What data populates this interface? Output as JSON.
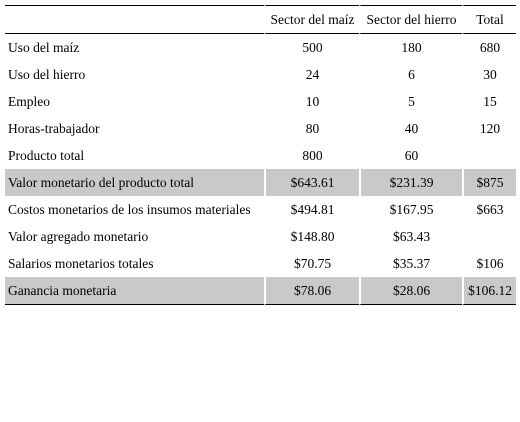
{
  "table": {
    "headers": [
      "",
      "Sector del maíz",
      "Sector del hierro",
      "Total"
    ],
    "rows": [
      {
        "label": "Uso del maíz",
        "values": [
          "500",
          "180",
          "680"
        ],
        "shaded": false
      },
      {
        "label": "Uso del hierro",
        "values": [
          "24",
          "6",
          "30"
        ],
        "shaded": false
      },
      {
        "label": "Empleo",
        "values": [
          "10",
          "5",
          "15"
        ],
        "shaded": false
      },
      {
        "label": "Horas-trabajador",
        "values": [
          "80",
          "40",
          "120"
        ],
        "shaded": false
      },
      {
        "label": "Producto total",
        "values": [
          "800",
          "60",
          ""
        ],
        "shaded": false
      },
      {
        "label": "Valor monetario del producto total",
        "values": [
          "$643.61",
          "$231.39",
          "$875"
        ],
        "shaded": true
      },
      {
        "label": "Costos monetarios de los insumos materiales",
        "values": [
          "$494.81",
          "$167.95",
          "$663"
        ],
        "shaded": false
      },
      {
        "label": "Valor agregado monetario",
        "values": [
          "$148.80",
          "$63.43",
          ""
        ],
        "shaded": false
      },
      {
        "label": "Salarios monetarios totales",
        "values": [
          "$70.75",
          "$35.37",
          "$106"
        ],
        "shaded": false
      },
      {
        "label": "Ganancia monetaria",
        "values": [
          "$78.06",
          "$28.06",
          "$106.12"
        ],
        "shaded": true
      }
    ],
    "shade_color": "#c9c9cb"
  }
}
